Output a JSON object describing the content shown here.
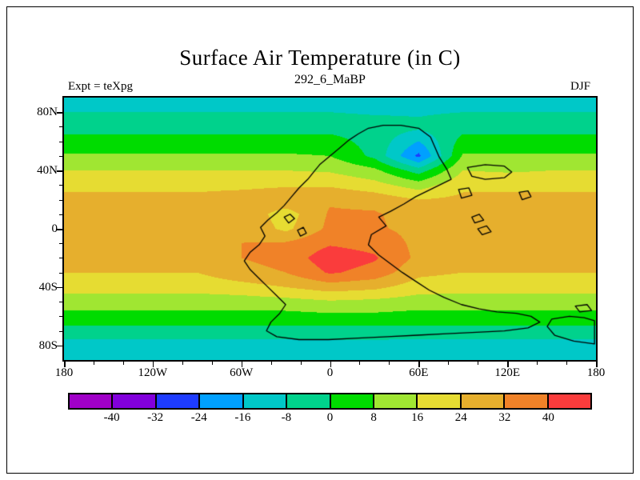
{
  "chart_data": {
    "type": "heatmap",
    "title": "Surface Air Temperature (in C)",
    "subtitle": "292_6_MaBP",
    "experiment_label": "Expt = teXpg",
    "season_label": "DJF",
    "x_axis": {
      "range": [
        -180,
        180
      ],
      "tick_values": [
        -180,
        -120,
        -60,
        0,
        60,
        120,
        180
      ],
      "tick_labels": [
        "180",
        "120W",
        "60W",
        "0",
        "60E",
        "120E",
        "180"
      ],
      "minor_step": 20
    },
    "y_axis": {
      "range": [
        -90,
        90
      ],
      "tick_values": [
        80,
        40,
        0,
        -40,
        -80
      ],
      "tick_labels": [
        "80N",
        "40N",
        "0",
        "40S",
        "80S"
      ],
      "minor_step": 10
    },
    "colorbar": {
      "labels": [
        "-40",
        "-32",
        "-24",
        "-16",
        "-8",
        "0",
        "8",
        "16",
        "24",
        "32",
        "40"
      ],
      "levels": [
        -40,
        -32,
        -24,
        -16,
        -8,
        0,
        8,
        16,
        24,
        32,
        40
      ],
      "colors": [
        "#A000C8",
        "#8200DC",
        "#1E3CFF",
        "#00A0FF",
        "#00C8C8",
        "#00D28C",
        "#00DC00",
        "#A0E632",
        "#E6DC32",
        "#E6AF2D",
        "#F08228",
        "#FA3C3C"
      ]
    },
    "grid": {
      "lons": [
        -180,
        -150,
        -120,
        -90,
        -60,
        -30,
        0,
        30,
        60,
        90,
        120,
        150,
        180
      ],
      "lats": [
        90,
        80,
        70,
        60,
        50,
        40,
        30,
        20,
        10,
        0,
        -10,
        -20,
        -30,
        -40,
        -50,
        -60,
        -70,
        -80,
        -90
      ],
      "values": [
        [
          -10,
          -10,
          -10,
          -10,
          -10,
          -10,
          -10,
          -10,
          -10,
          -10,
          -10,
          -10,
          -10
        ],
        [
          -8,
          -8,
          -8,
          -8,
          -8,
          -8,
          -8,
          -9,
          -9,
          -8,
          -8,
          -8,
          -8
        ],
        [
          -3,
          -3,
          -3,
          -3,
          -3,
          -3,
          -3,
          -4,
          -6,
          -3,
          -3,
          -3,
          -3
        ],
        [
          3,
          3,
          3,
          3,
          3,
          3,
          3,
          -3,
          -16,
          3,
          3,
          3,
          3
        ],
        [
          9,
          9,
          9,
          9,
          9,
          9,
          8,
          -2,
          -26,
          9,
          9,
          9,
          9
        ],
        [
          16,
          16,
          16,
          16,
          16,
          16,
          15,
          10,
          -4,
          16,
          15,
          16,
          16
        ],
        [
          22,
          22,
          22,
          22,
          22,
          23,
          23,
          19,
          12,
          22,
          22,
          22,
          22
        ],
        [
          26,
          26,
          26,
          26,
          28,
          30,
          31,
          29,
          24,
          26,
          26,
          26,
          26
        ],
        [
          28,
          28,
          28,
          28,
          30,
          20,
          33,
          33,
          28,
          27,
          28,
          28,
          28
        ],
        [
          28,
          28,
          28,
          28,
          31,
          22,
          34,
          33,
          30,
          28,
          28,
          28,
          28
        ],
        [
          28,
          28,
          28,
          28,
          32,
          33,
          39,
          37,
          30,
          28,
          28,
          28,
          28
        ],
        [
          27,
          27,
          27,
          27,
          32,
          35,
          45,
          41,
          30,
          27,
          27,
          27,
          27
        ],
        [
          24,
          24,
          24,
          24,
          29,
          32,
          41,
          37,
          26,
          24,
          24,
          24,
          24
        ],
        [
          19,
          19,
          19,
          19,
          21,
          24,
          28,
          26,
          20,
          19,
          19,
          19,
          19
        ],
        [
          12,
          12,
          12,
          12,
          12,
          13,
          15,
          14,
          12,
          12,
          12,
          12,
          12
        ],
        [
          5,
          5,
          5,
          5,
          5,
          5,
          6,
          6,
          5,
          5,
          5,
          5,
          5
        ],
        [
          -3,
          -3,
          -3,
          -3,
          -3,
          -3,
          -3,
          -3,
          -3,
          -3,
          -3,
          -3,
          -3
        ],
        [
          -12,
          -12,
          -12,
          -12,
          -12,
          -12,
          -11,
          -11,
          -12,
          -12,
          -12,
          -12,
          -12
        ],
        [
          -16,
          -16,
          -16,
          -16,
          -16,
          -16,
          -16,
          -16,
          -16,
          -16,
          -16,
          -16,
          -16
        ]
      ]
    },
    "coastlines": [
      {
        "name": "pangea-main",
        "closed": true,
        "points": [
          [
            -7,
            44
          ],
          [
            0,
            50
          ],
          [
            6,
            55
          ],
          [
            13,
            61
          ],
          [
            19,
            65
          ],
          [
            26,
            69
          ],
          [
            36,
            71
          ],
          [
            48,
            71
          ],
          [
            60,
            69
          ],
          [
            68,
            63
          ],
          [
            71,
            56
          ],
          [
            74,
            49
          ],
          [
            79,
            41
          ],
          [
            82,
            34
          ],
          [
            74,
            30
          ],
          [
            66,
            26
          ],
          [
            58,
            22
          ],
          [
            50,
            17
          ],
          [
            41,
            12
          ],
          [
            33,
            8
          ],
          [
            38,
            2
          ],
          [
            28,
            -4
          ],
          [
            26,
            -11
          ],
          [
            33,
            -18
          ],
          [
            41,
            -24
          ],
          [
            49,
            -30
          ],
          [
            58,
            -36
          ],
          [
            67,
            -42
          ],
          [
            77,
            -47
          ],
          [
            89,
            -52
          ],
          [
            101,
            -55
          ],
          [
            113,
            -57
          ],
          [
            126,
            -58
          ],
          [
            136,
            -60
          ],
          [
            142,
            -64
          ],
          [
            134,
            -68
          ],
          [
            118,
            -70
          ],
          [
            99,
            -71
          ],
          [
            79,
            -72
          ],
          [
            59,
            -73
          ],
          [
            39,
            -74
          ],
          [
            19,
            -75
          ],
          [
            -1,
            -76
          ],
          [
            -21,
            -76
          ],
          [
            -36,
            -74
          ],
          [
            -43,
            -70
          ],
          [
            -40,
            -64
          ],
          [
            -34,
            -58
          ],
          [
            -30,
            -52
          ],
          [
            -36,
            -46
          ],
          [
            -42,
            -40
          ],
          [
            -48,
            -34
          ],
          [
            -54,
            -28
          ],
          [
            -58,
            -22
          ],
          [
            -54,
            -16
          ],
          [
            -48,
            -11
          ],
          [
            -44,
            -5
          ],
          [
            -47,
            1
          ],
          [
            -42,
            6
          ],
          [
            -36,
            11
          ],
          [
            -31,
            16
          ],
          [
            -26,
            22
          ],
          [
            -21,
            28
          ],
          [
            -15,
            34
          ],
          [
            -11,
            39
          ]
        ]
      },
      {
        "name": "north-island",
        "closed": true,
        "points": [
          [
            93,
            42
          ],
          [
            105,
            44
          ],
          [
            118,
            43
          ],
          [
            123,
            39
          ],
          [
            118,
            35
          ],
          [
            105,
            34
          ],
          [
            96,
            36
          ]
        ]
      },
      {
        "name": "island-1",
        "closed": true,
        "points": [
          [
            128,
            25
          ],
          [
            134,
            26
          ],
          [
            136,
            22
          ],
          [
            130,
            20
          ]
        ]
      },
      {
        "name": "island-2",
        "closed": true,
        "points": [
          [
            96,
            8
          ],
          [
            101,
            10
          ],
          [
            104,
            6
          ],
          [
            98,
            4
          ]
        ]
      },
      {
        "name": "island-3",
        "closed": true,
        "points": [
          [
            100,
            0
          ],
          [
            106,
            2
          ],
          [
            109,
            -2
          ],
          [
            103,
            -4
          ]
        ]
      },
      {
        "name": "island-4",
        "closed": true,
        "points": [
          [
            87,
            27
          ],
          [
            94,
            28
          ],
          [
            96,
            23
          ],
          [
            89,
            21
          ]
        ]
      },
      {
        "name": "se-landmass",
        "closed": true,
        "points": [
          [
            150,
            -62
          ],
          [
            162,
            -60
          ],
          [
            172,
            -61
          ],
          [
            179,
            -63
          ],
          [
            179,
            -79
          ],
          [
            165,
            -77
          ],
          [
            152,
            -73
          ],
          [
            147,
            -67
          ]
        ]
      },
      {
        "name": "island-5",
        "closed": true,
        "points": [
          [
            166,
            -53
          ],
          [
            174,
            -52
          ],
          [
            177,
            -56
          ],
          [
            169,
            -57
          ]
        ]
      },
      {
        "name": "inland-lake-1",
        "closed": true,
        "points": [
          [
            -31,
            8
          ],
          [
            -27,
            10
          ],
          [
            -24,
            7
          ],
          [
            -28,
            4
          ]
        ]
      },
      {
        "name": "inland-lake-2",
        "closed": true,
        "points": [
          [
            -22,
            -1
          ],
          [
            -18,
            1
          ],
          [
            -16,
            -3
          ],
          [
            -20,
            -5
          ]
        ]
      }
    ]
  }
}
